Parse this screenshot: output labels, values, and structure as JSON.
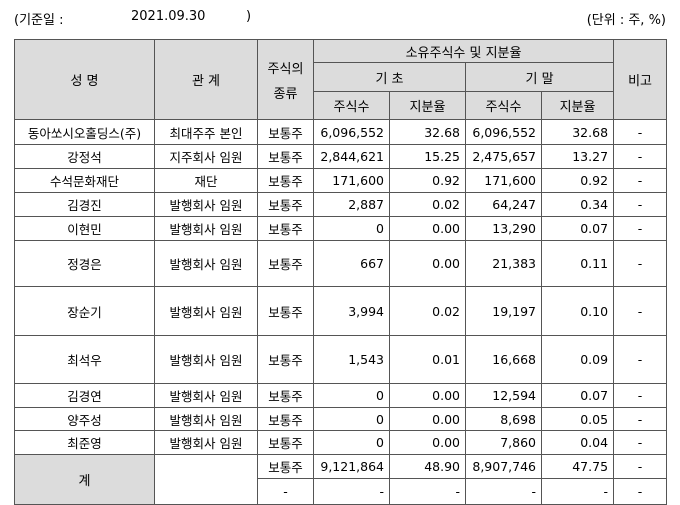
{
  "header": {
    "base_date_label": "(기준일 :",
    "base_date": "2021.09.30",
    "close_paren": ")",
    "unit": "(단위 : 주, %)"
  },
  "table": {
    "headers": {
      "name": "성 명",
      "relation": "관 계",
      "stock_type_line1": "주식의",
      "stock_type_line2": "종류",
      "holdings_group": "소유주식수 및 지분율",
      "period_start": "기 초",
      "period_end": "기 말",
      "remarks": "비고",
      "shares": "주식수",
      "ratio": "지분율"
    },
    "rows": [
      {
        "name": "동아쏘시오홀딩스(주)",
        "relation": "최대주주 본인",
        "type": "보통주",
        "start_shares": "6,096,552",
        "start_ratio": "32.68",
        "end_shares": "6,096,552",
        "end_ratio": "32.68",
        "remark": "-"
      },
      {
        "name": "강정석",
        "relation": "지주회사 임원",
        "type": "보통주",
        "start_shares": "2,844,621",
        "start_ratio": "15.25",
        "end_shares": "2,475,657",
        "end_ratio": "13.27",
        "remark": "-"
      },
      {
        "name": "수석문화재단",
        "relation": "재단",
        "type": "보통주",
        "start_shares": "171,600",
        "start_ratio": "0.92",
        "end_shares": "171,600",
        "end_ratio": "0.92",
        "remark": "-"
      },
      {
        "name": "김경진",
        "relation": "발행회사 임원",
        "type": "보통주",
        "start_shares": "2,887",
        "start_ratio": "0.02",
        "end_shares": "64,247",
        "end_ratio": "0.34",
        "remark": "-"
      },
      {
        "name": "이현민",
        "relation": "발행회사 임원",
        "type": "보통주",
        "start_shares": "0",
        "start_ratio": "0.00",
        "end_shares": "13,290",
        "end_ratio": "0.07",
        "remark": "-"
      },
      {
        "name": "정경은",
        "relation": "발행회사 임원",
        "type": "보통주",
        "start_shares": "667",
        "start_ratio": "0.00",
        "end_shares": "21,383",
        "end_ratio": "0.11",
        "remark": "-"
      },
      {
        "name": "장순기",
        "relation": "발행회사 임원",
        "type": "보통주",
        "start_shares": "3,994",
        "start_ratio": "0.02",
        "end_shares": "19,197",
        "end_ratio": "0.10",
        "remark": "-"
      },
      {
        "name": "최석우",
        "relation": "발행회사 임원",
        "type": "보통주",
        "start_shares": "1,543",
        "start_ratio": "0.01",
        "end_shares": "16,668",
        "end_ratio": "0.09",
        "remark": "-"
      },
      {
        "name": "김경연",
        "relation": "발행회사 임원",
        "type": "보통주",
        "start_shares": "0",
        "start_ratio": "0.00",
        "end_shares": "12,594",
        "end_ratio": "0.07",
        "remark": "-"
      },
      {
        "name": "양주성",
        "relation": "발행회사 임원",
        "type": "보통주",
        "start_shares": "0",
        "start_ratio": "0.00",
        "end_shares": "8,698",
        "end_ratio": "0.05",
        "remark": "-"
      },
      {
        "name": "최준영",
        "relation": "발행회사 임원",
        "type": "보통주",
        "start_shares": "0",
        "start_ratio": "0.00",
        "end_shares": "7,860",
        "end_ratio": "0.04",
        "remark": "-"
      }
    ],
    "total": {
      "label": "계",
      "row1": {
        "type": "보통주",
        "start_shares": "9,121,864",
        "start_ratio": "48.90",
        "end_shares": "8,907,746",
        "end_ratio": "47.75",
        "remark": "-"
      },
      "row2": {
        "type": "-",
        "start_shares": "-",
        "start_ratio": "-",
        "end_shares": "-",
        "end_ratio": "-",
        "remark": "-"
      }
    }
  }
}
